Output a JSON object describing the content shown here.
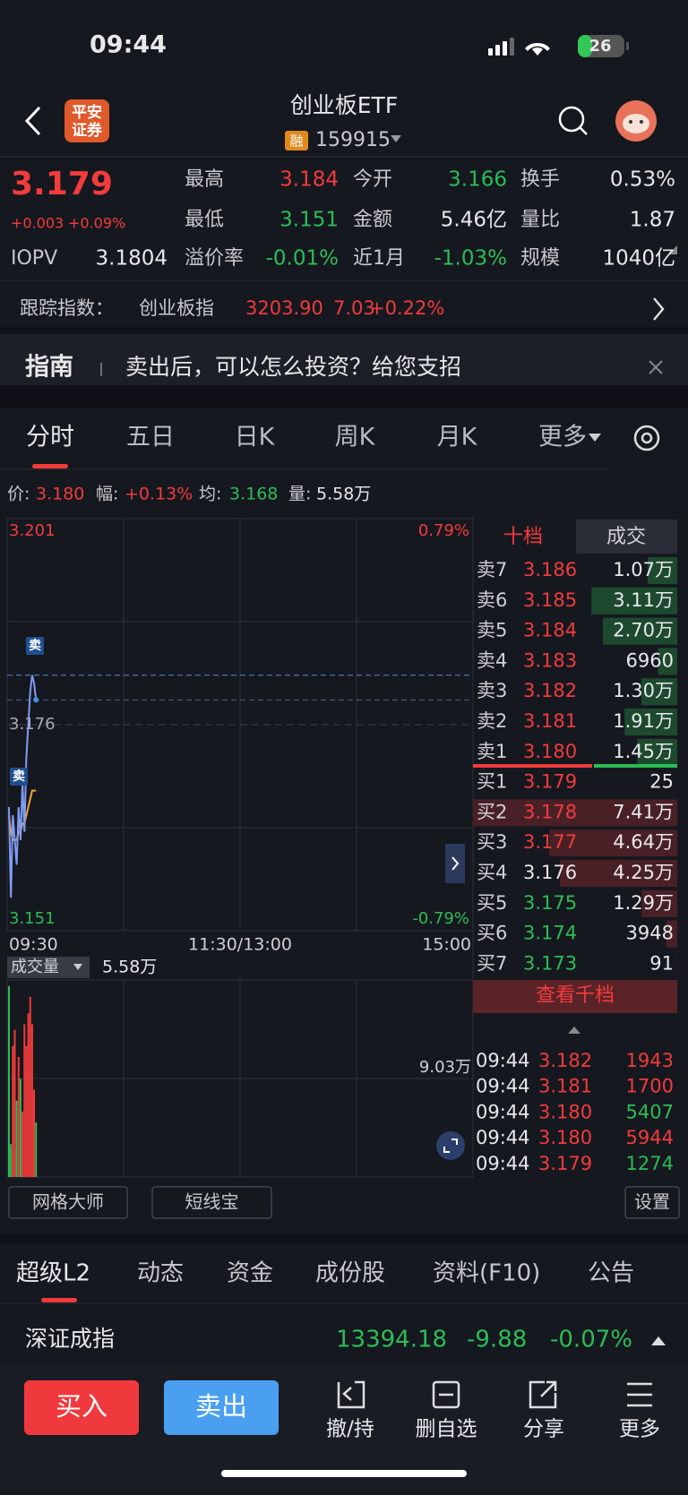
{
  "status_bar": {
    "time": "09:44",
    "battery": "26"
  },
  "header": {
    "logo": [
      "平安",
      "证券"
    ],
    "title": "创业板ETF",
    "badge": "融",
    "code": "159915"
  },
  "quote": {
    "price": "3.179",
    "change": "+0.003",
    "change_pct": "+0.09%",
    "rows": [
      [
        {
          "label": "最高",
          "value": "3.184",
          "color": "#f23b3b"
        },
        {
          "label": "今开",
          "value": "3.166",
          "color": "#2bbd55"
        },
        {
          "label": "换手",
          "value": "0.53%",
          "color": "#e8e8ea"
        }
      ],
      [
        {
          "label": "最低",
          "value": "3.151",
          "color": "#2bbd55"
        },
        {
          "label": "金额",
          "value": "5.46亿",
          "color": "#e8e8ea"
        },
        {
          "label": "量比",
          "value": "1.87",
          "color": "#e8e8ea"
        }
      ],
      [
        {
          "label": "IOPV",
          "value": "3.1804",
          "color": "#e8e8ea"
        },
        {
          "label": "溢价率",
          "value": "-0.01%",
          "color": "#2bbd55"
        },
        {
          "label": "近1月",
          "value": "-1.03%",
          "color": "#2bbd55"
        },
        {
          "label": "规模",
          "value": "1040亿",
          "color": "#e8e8ea"
        }
      ]
    ]
  },
  "tracking": {
    "label": "跟踪指数：",
    "index": "创业板指",
    "value": "3203.90",
    "change": "7.03",
    "pct": "+0.22%"
  },
  "guide": {
    "label": "指南",
    "text": "卖出后，可以怎么投资？给您支招"
  },
  "chart_tabs": {
    "items": [
      "分时",
      "五日",
      "日K",
      "周K",
      "月K",
      "更多"
    ],
    "active": 0
  },
  "info": [
    {
      "label": "价:",
      "value": "3.180",
      "color": "#f23b3b"
    },
    {
      "label": "幅:",
      "value": "+0.13%",
      "color": "#f23b3b"
    },
    {
      "label": "均:",
      "value": "3.168",
      "color": "#2bbd55"
    },
    {
      "label": "量:",
      "value": "5.58万",
      "color": "#e8e8ea"
    }
  ],
  "chart": {
    "ylim": [
      3.151,
      3.201
    ],
    "yticks": [
      3.151,
      3.176,
      3.201
    ],
    "ytick_colors": [
      "#2bbd55",
      "#a9abb3",
      "#f23b3b"
    ],
    "y2lim": [
      -0.79,
      0.79
    ],
    "y2ticks": [
      {
        "value": -0.79,
        "label": "-0.79%"
      },
      {
        "value": 0.79,
        "label": "0.79%"
      }
    ],
    "y2tick_colors": [
      "#2bbd55",
      "#f23b3b"
    ],
    "xlabels": [
      "09:30",
      "11:30/13:00",
      "15:00"
    ],
    "price": [
      3.166,
      3.155,
      3.165,
      3.162,
      3.159,
      3.166,
      3.162,
      3.169,
      3.163,
      3.172,
      3.176,
      3.18,
      3.182,
      3.181,
      3.179
    ],
    "avg": [
      3.165,
      3.163,
      3.162,
      3.162,
      3.162,
      3.163,
      3.163,
      3.164,
      3.164,
      3.165,
      3.166,
      3.167,
      3.168,
      3.168,
      3.168
    ],
    "price_color": "#7f9cf5",
    "avg_color": "#f2a531",
    "ref_lines": [
      3.182,
      3.179
    ],
    "signals": [
      "卖",
      "卖"
    ],
    "volume_label": "成交量",
    "volume_value": "5.58万",
    "volume_ylim": [
      0,
      18.06
    ],
    "volume_yticks": [
      {
        "value": 9.03,
        "label": "9.03万"
      }
    ],
    "volume": [
      17.5,
      3.0,
      12.0,
      13.5,
      7.0,
      11.0,
      9.0,
      6.0,
      14.0,
      12.0,
      15.0,
      16.5,
      14.0,
      8.0,
      5.0
    ],
    "volume_colors": [
      "#2bbd55",
      "#2bbd55",
      "#f23b3b",
      "#f23b3b",
      "#2bbd55",
      "#f23b3b",
      "#2bbd55",
      "#f23b3b",
      "#f23b3b",
      "#f23b3b",
      "#f23b3b",
      "#f23b3b",
      "#f23b3b",
      "#f23b3b",
      "#2bbd55"
    ]
  },
  "order_book": {
    "tabs": [
      "十档",
      "成交"
    ],
    "asks": [
      {
        "label": "卖7",
        "price": "3.186",
        "volume": "1.07万",
        "depth": 1.07,
        "color": "#f23b3b"
      },
      {
        "label": "卖6",
        "price": "3.185",
        "volume": "3.11万",
        "depth": 3.11,
        "color": "#f23b3b"
      },
      {
        "label": "卖5",
        "price": "3.184",
        "volume": "2.70万",
        "depth": 2.7,
        "color": "#f23b3b"
      },
      {
        "label": "卖4",
        "price": "3.183",
        "volume": "6960",
        "depth": 0.696,
        "color": "#f23b3b"
      },
      {
        "label": "卖3",
        "price": "3.182",
        "volume": "1.30万",
        "depth": 1.3,
        "color": "#f23b3b"
      },
      {
        "label": "卖2",
        "price": "3.181",
        "volume": "1.91万",
        "depth": 1.91,
        "color": "#f23b3b"
      },
      {
        "label": "卖1",
        "price": "3.180",
        "volume": "1.45万",
        "depth": 1.45,
        "color": "#f23b3b"
      }
    ],
    "bids": [
      {
        "label": "买1",
        "price": "3.179",
        "volume": "25",
        "depth": 0.0025,
        "color": "#f23b3b"
      },
      {
        "label": "买2",
        "price": "3.178",
        "volume": "7.41万",
        "depth": 7.41,
        "color": "#f23b3b"
      },
      {
        "label": "买3",
        "price": "3.177",
        "volume": "4.64万",
        "depth": 4.64,
        "color": "#f23b3b"
      },
      {
        "label": "买4",
        "price": "3.176",
        "volume": "4.25万",
        "depth": 4.25,
        "color": "#e8e8ea"
      },
      {
        "label": "买5",
        "price": "3.175",
        "volume": "1.29万",
        "depth": 1.29,
        "color": "#2bbd55"
      },
      {
        "label": "买6",
        "price": "3.174",
        "volume": "3948",
        "depth": 0.3948,
        "color": "#2bbd55"
      },
      {
        "label": "买7",
        "price": "3.173",
        "volume": "91",
        "depth": 0.0091,
        "color": "#2bbd55"
      }
    ],
    "more": "查看千档",
    "trades": [
      {
        "time": "09:44",
        "price": "3.182",
        "volume": "1943",
        "color": "#f23b3b"
      },
      {
        "time": "09:44",
        "price": "3.181",
        "volume": "1700",
        "color": "#f23b3b"
      },
      {
        "time": "09:44",
        "price": "3.180",
        "volume": "5407",
        "color": "#2bbd55"
      },
      {
        "time": "09:44",
        "price": "3.180",
        "volume": "5944",
        "color": "#f23b3b"
      },
      {
        "time": "09:44",
        "price": "3.179",
        "volume": "1274",
        "color": "#2bbd55"
      }
    ]
  },
  "tools": {
    "items": [
      "网格大师",
      "短线宝"
    ],
    "settings": "设置"
  },
  "bottom_tabs": {
    "items": [
      "超级L2",
      "动态",
      "资金",
      "成份股",
      "资料(F10)",
      "公告"
    ],
    "active": 0
  },
  "index_row": {
    "name": "深证成指",
    "value": "13394.18",
    "change": "-9.88",
    "pct": "-0.07%"
  },
  "actions": {
    "buy": "买入",
    "sell": "卖出",
    "items": [
      "撤/持",
      "删自选",
      "分享",
      "更多"
    ]
  }
}
